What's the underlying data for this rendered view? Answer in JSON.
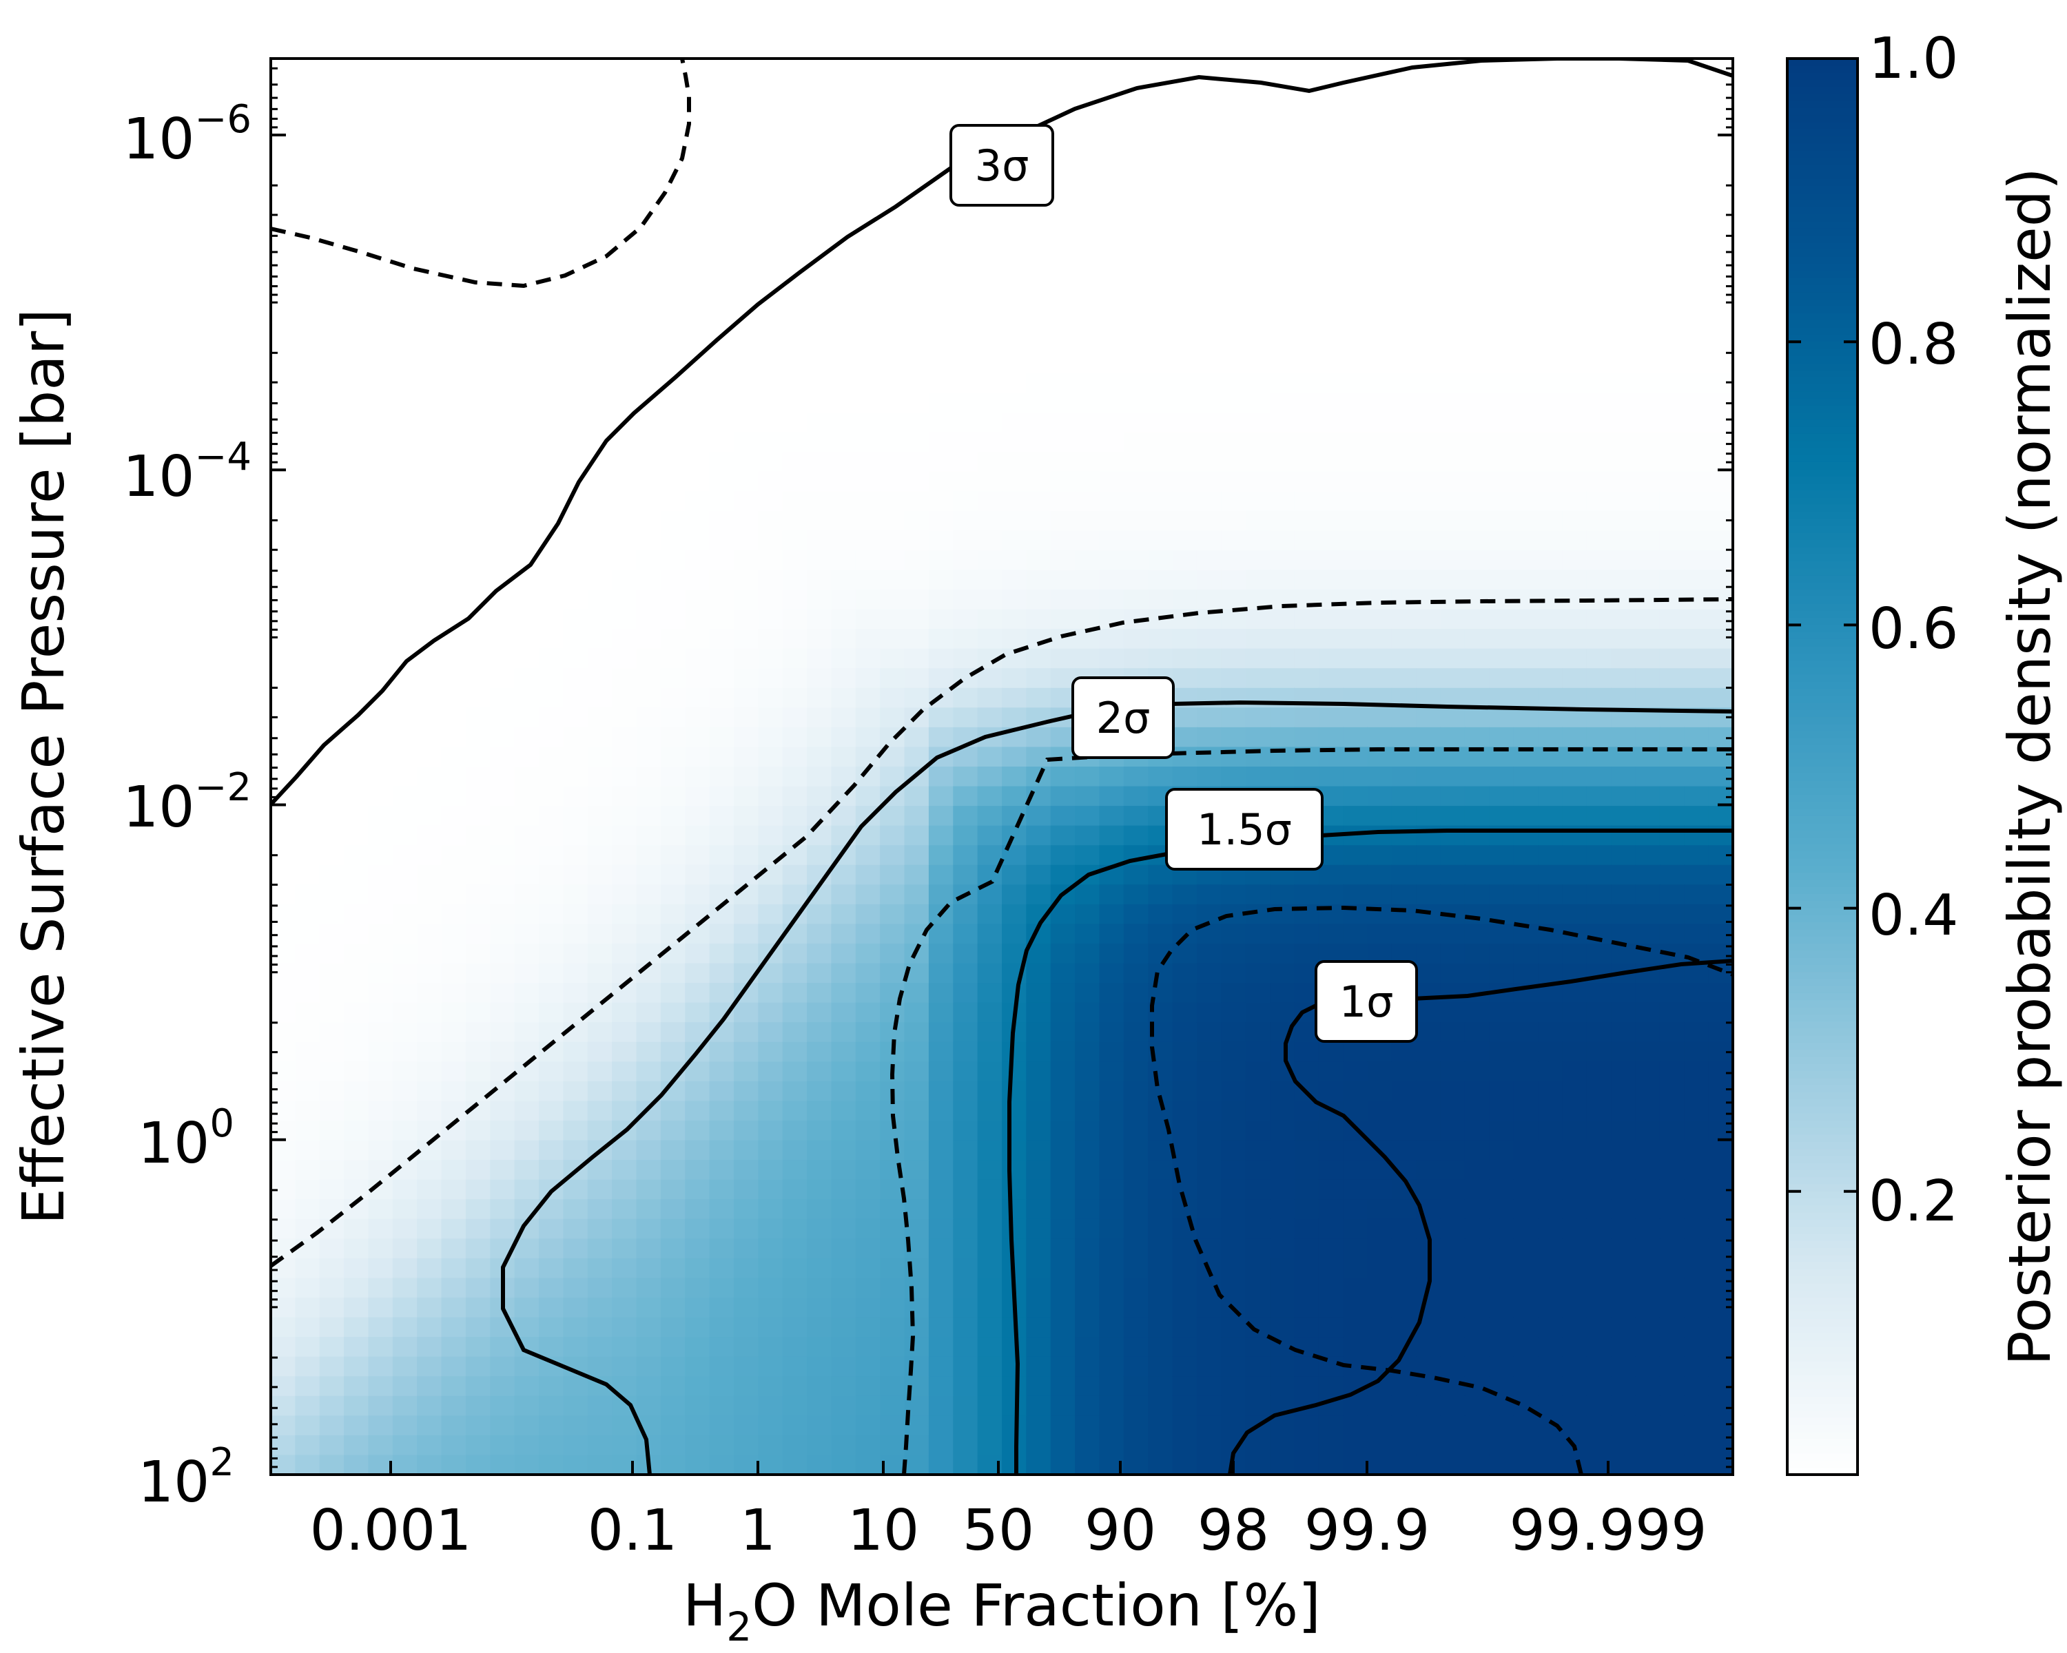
{
  "chart_data": {
    "type": "heatmap",
    "xlabel_prefix": "H",
    "xlabel_sub": "2",
    "xlabel_suffix": "O Mole Fraction [%]",
    "ylabel": "Effective Surface Pressure [bar]",
    "x_ticks": [
      "0.001",
      "0.1",
      "1",
      "10",
      "50",
      "90",
      "98",
      "99.9",
      "99.999"
    ],
    "y_ticks": [
      {
        "base": "10",
        "exp": "−6"
      },
      {
        "base": "10",
        "exp": "−4"
      },
      {
        "base": "10",
        "exp": "−2"
      },
      {
        "base": "10",
        "exp": "0"
      },
      {
        "base": "10",
        "exp": "2"
      }
    ],
    "y_tick_values": [
      1e-06,
      0.0001,
      0.01,
      1,
      100
    ],
    "ylim": [
      100,
      2.5e-07
    ],
    "y_scale": "log (inverted)",
    "colorbar": {
      "label": "Posterior probability density (normalized)",
      "ticks": [
        "0.2",
        "0.4",
        "0.6",
        "0.8",
        "1.0"
      ],
      "tick_values": [
        0.2,
        0.4,
        0.6,
        0.8,
        1.0
      ],
      "range": [
        0,
        1.0
      ],
      "colormap": [
        "#ffffff",
        "#d8e9f2",
        "#9bcbe0",
        "#5aaecd",
        "#2e93bd",
        "#0378a6",
        "#025592",
        "#023c80"
      ]
    },
    "contour_labels": [
      "3σ",
      "2σ",
      "1.5σ",
      "1σ"
    ],
    "contours": [
      {
        "level": "1σ",
        "style": "solid"
      },
      {
        "level": "1.5σ",
        "style": "solid"
      },
      {
        "level": "2σ",
        "style": "solid"
      },
      {
        "level": "3σ",
        "style": "solid"
      },
      {
        "level": "intermediate",
        "style": "dashed"
      }
    ],
    "grid": false,
    "legend": "none"
  }
}
